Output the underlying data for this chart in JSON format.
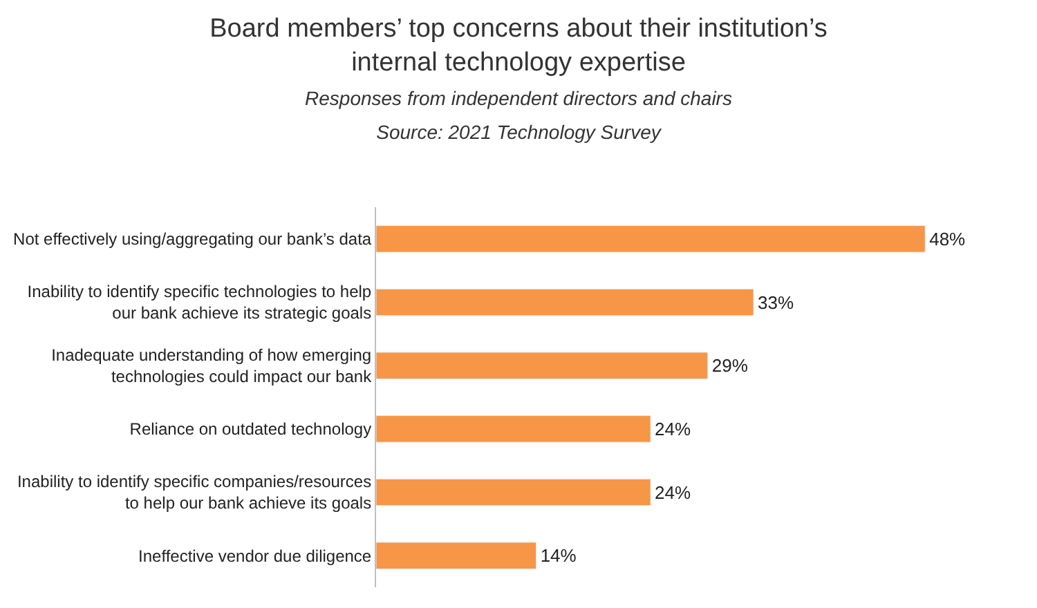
{
  "chart_data": {
    "type": "bar",
    "orientation": "horizontal",
    "title": "Board members’ top concerns about their institution’s internal technology expertise",
    "subtitle": "Responses from independent directors and chairs",
    "annotations": [
      "Source: 2021 Technology Survey"
    ],
    "categories": [
      "Not effectively using/aggregating our bank’s data",
      "Inability to identify specific technologies to help our bank achieve its strategic goals",
      "Inadequate understanding of how emerging technologies could impact our bank",
      "Reliance on outdated technology",
      "Inability to identify specific companies/resources to help our bank achieve its goals",
      "Ineffective vendor due diligence"
    ],
    "values": [
      48,
      33,
      29,
      24,
      24,
      14
    ],
    "value_labels": [
      "48%",
      "33%",
      "29%",
      "24%",
      "24%",
      "14%"
    ],
    "color": "#f79646"
  }
}
